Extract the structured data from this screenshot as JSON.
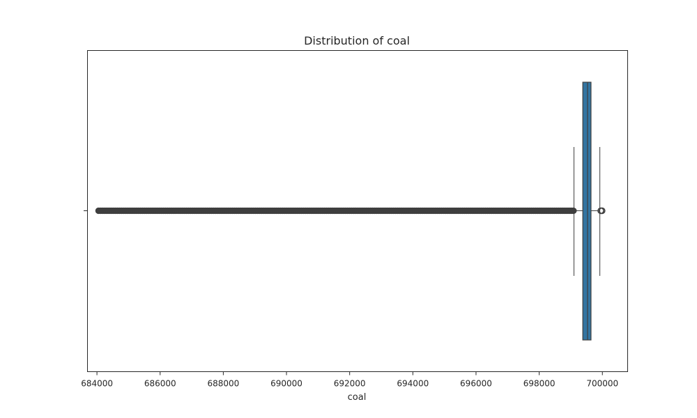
{
  "chart_data": {
    "type": "box",
    "title": "Distribution of coal",
    "xlabel": "coal",
    "ylabel": "",
    "orientation": "horizontal",
    "xlim": [
      683700,
      700800
    ],
    "xticks": [
      684000,
      686000,
      688000,
      690000,
      692000,
      694000,
      696000,
      698000,
      700000
    ],
    "xtick_labels": [
      "684000",
      "686000",
      "688000",
      "690000",
      "692000",
      "694000",
      "696000",
      "698000",
      "700000"
    ],
    "grid": false,
    "box": {
      "whisker_low": 699100,
      "q1": 699380,
      "median": 699530,
      "q3": 699640,
      "whisker_high": 699920,
      "fill_color": "#3274a1",
      "edge_color": "#3f3f3f"
    },
    "outliers": {
      "low_range": [
        684050,
        699090
      ],
      "high_values": [
        699950,
        699990
      ],
      "color": "#3f3f3f"
    }
  }
}
